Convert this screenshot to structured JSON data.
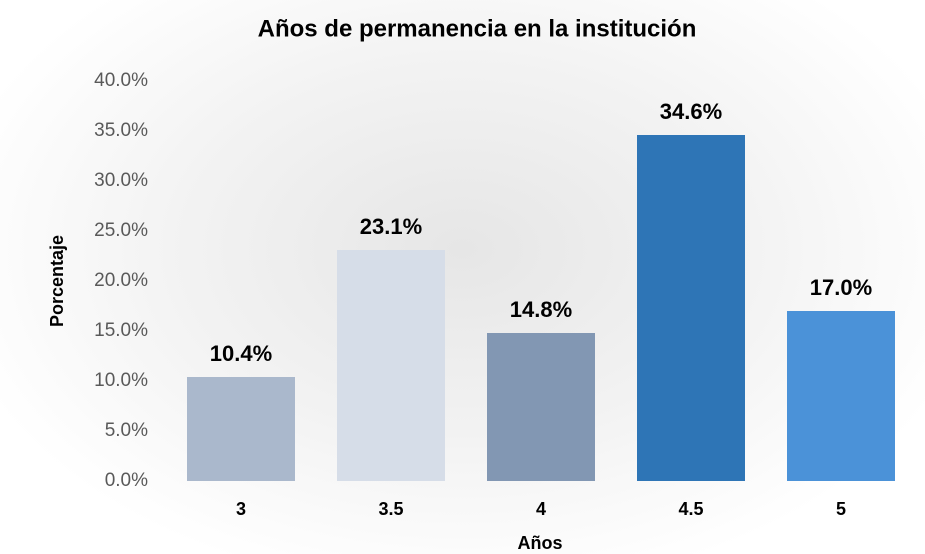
{
  "chart_data": {
    "type": "bar",
    "title": "Años de permanencia en la institución",
    "xlabel": "Años",
    "ylabel": "Porcentaje",
    "categories": [
      "3",
      "3.5",
      "4",
      "4.5",
      "5"
    ],
    "values": [
      10.4,
      23.1,
      14.8,
      34.6,
      17.0
    ],
    "value_labels": [
      "10.4%",
      "23.1%",
      "14.8%",
      "34.6%",
      "17.0%"
    ],
    "colors": [
      "#aab8cc",
      "#d6dde8",
      "#8297b3",
      "#2e75b6",
      "#4b92d8"
    ],
    "ylim": [
      0,
      40
    ],
    "yticks": [
      {
        "value": 0,
        "label": "0.0%"
      },
      {
        "value": 5,
        "label": "5.0%"
      },
      {
        "value": 10,
        "label": "10.0%"
      },
      {
        "value": 15,
        "label": "15.0%"
      },
      {
        "value": 20,
        "label": "20.0%"
      },
      {
        "value": 25,
        "label": "25.0%"
      },
      {
        "value": 30,
        "label": "30.0%"
      },
      {
        "value": 35,
        "label": "35.0%"
      },
      {
        "value": 40,
        "label": "40.0%"
      }
    ],
    "grid": false
  }
}
